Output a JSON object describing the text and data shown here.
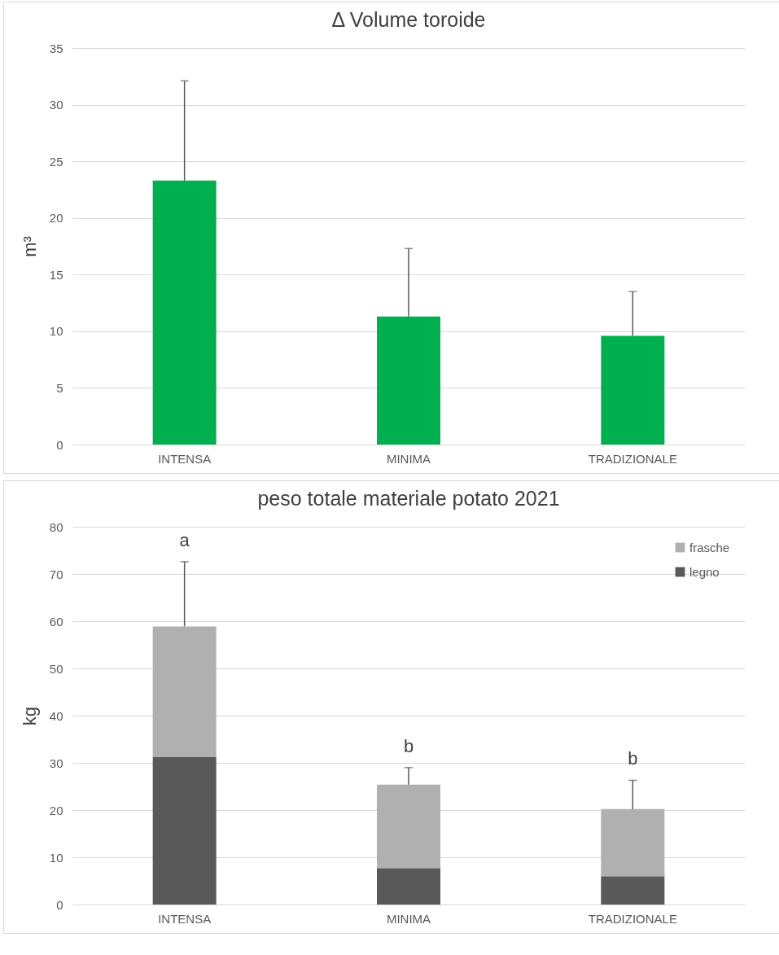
{
  "chart_data": [
    {
      "type": "bar",
      "title": "Δ Volume toroide",
      "ylabel": "m³",
      "categories": [
        "INTENSA",
        "MINIMA",
        "TRADIZIONALE"
      ],
      "values": [
        23.3,
        11.3,
        9.6
      ],
      "color": "#00b050",
      "errors": [
        [
          23.3,
          32.1
        ],
        [
          11.3,
          17.3
        ],
        [
          9.6,
          13.5
        ]
      ],
      "ylim": [
        0,
        35
      ],
      "yticks": [
        0,
        5,
        10,
        15,
        20,
        25,
        30,
        35
      ],
      "grid": "y"
    },
    {
      "type": "bar",
      "title": "peso totale materiale potato 2021",
      "ylabel": "kg",
      "categories": [
        "INTENSA",
        "MINIMA",
        "TRADIZIONALE"
      ],
      "stacked": true,
      "series": [
        {
          "name": "legno",
          "color": "#595959",
          "values": [
            31.3,
            7.7,
            6.0
          ]
        },
        {
          "name": "frasche",
          "color": "#b0b0b0",
          "values": [
            27.6,
            17.7,
            14.2
          ],
          "errors": [
            [
              58.9,
              72.6
            ],
            [
              25.4,
              29.0
            ],
            [
              20.2,
              26.3
            ]
          ]
        }
      ],
      "ylim": [
        0,
        80
      ],
      "yticks": [
        0,
        10,
        20,
        30,
        40,
        50,
        60,
        70,
        80
      ],
      "grid": "y",
      "legend": "top right",
      "annotations": [
        "a",
        "b",
        "b"
      ]
    }
  ]
}
